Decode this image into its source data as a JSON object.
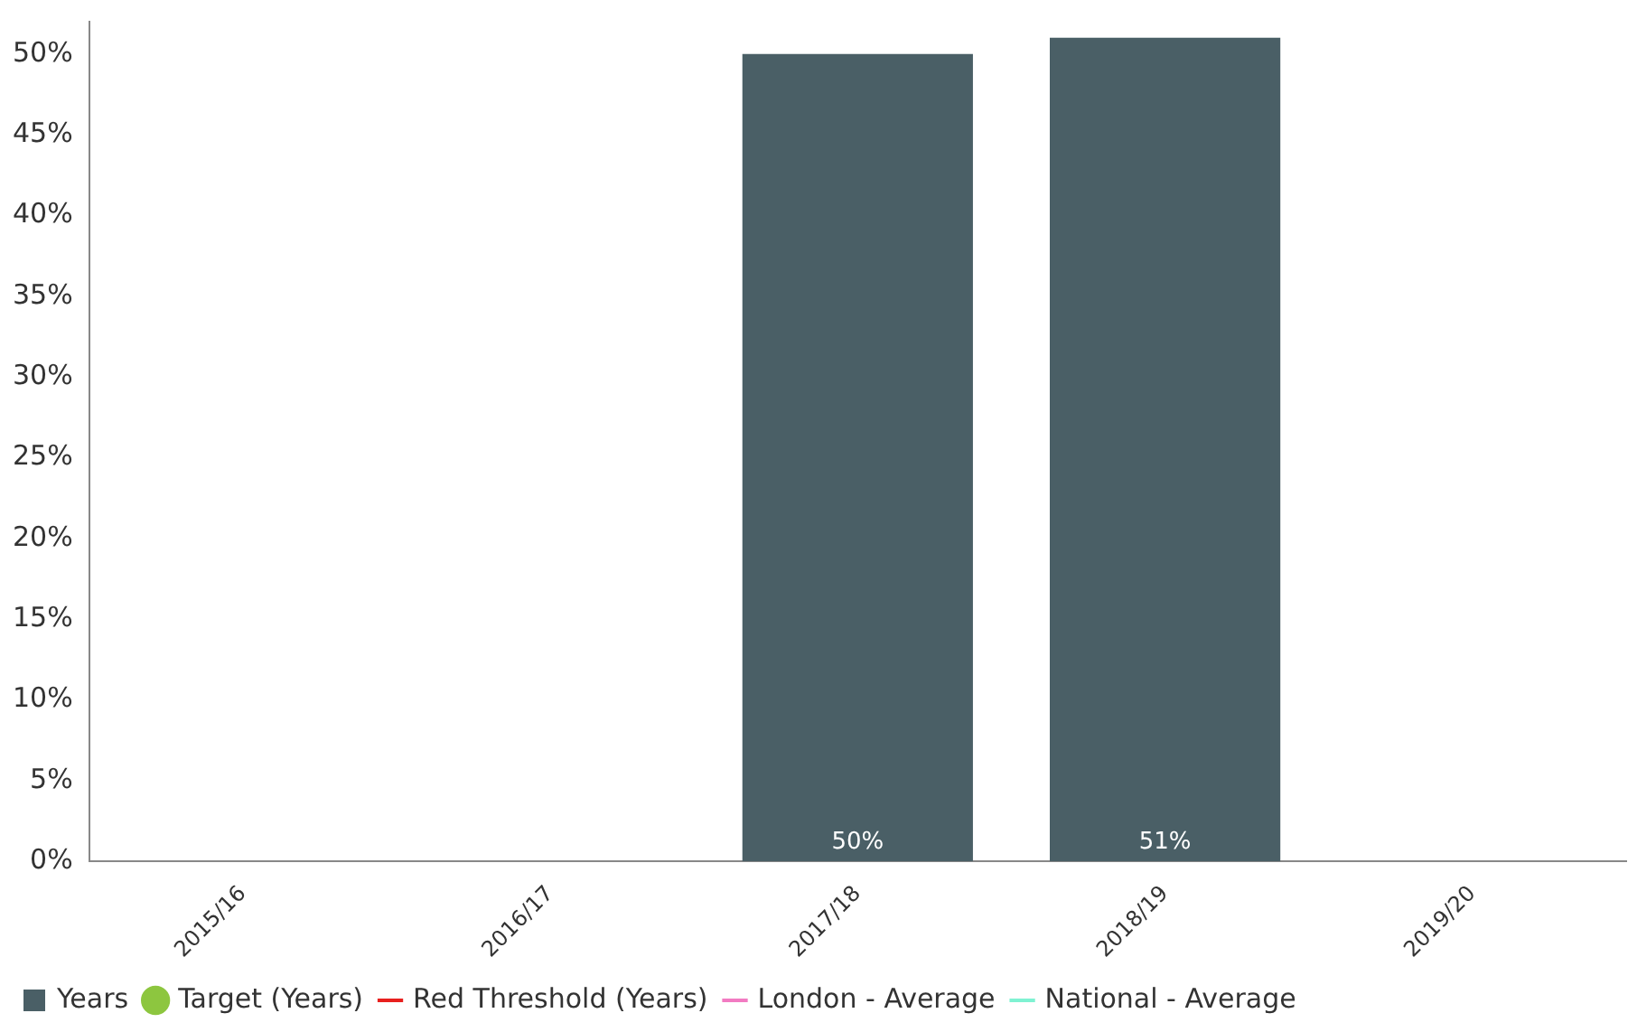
{
  "chart_data": {
    "type": "bar",
    "categories": [
      "2015/16",
      "2016/17",
      "2017/18",
      "2018/19",
      "2019/20"
    ],
    "series": [
      {
        "name": "Years",
        "color": "#4a5f66",
        "values": [
          null,
          null,
          50,
          51,
          null
        ],
        "value_labels": [
          null,
          null,
          "50%",
          "51%",
          null
        ]
      },
      {
        "name": "Target (Years)",
        "type": "line",
        "color": "#8dc63f",
        "marker": "circle",
        "values": [
          null,
          null,
          null,
          null,
          null
        ]
      },
      {
        "name": "Red Threshold (Years)",
        "type": "line",
        "color": "#e8201e",
        "marker": "none",
        "values": [
          null,
          null,
          null,
          null,
          null
        ]
      },
      {
        "name": "London - Average",
        "type": "line",
        "color": "#f27bc2",
        "marker": "none",
        "values": [
          null,
          null,
          null,
          null,
          null
        ]
      },
      {
        "name": "National - Average",
        "type": "line",
        "color": "#7ff2d2",
        "marker": "none",
        "values": [
          null,
          null,
          null,
          null,
          null
        ]
      }
    ],
    "ylim": [
      0,
      52
    ],
    "yticks": [
      {
        "value": 0,
        "label": "0%"
      },
      {
        "value": 5,
        "label": "5%"
      },
      {
        "value": 10,
        "label": "10%"
      },
      {
        "value": 15,
        "label": "15%"
      },
      {
        "value": 20,
        "label": "20%"
      },
      {
        "value": 25,
        "label": "25%"
      },
      {
        "value": 30,
        "label": "30%"
      },
      {
        "value": 35,
        "label": "35%"
      },
      {
        "value": 40,
        "label": "40%"
      },
      {
        "value": 45,
        "label": "45%"
      },
      {
        "value": 50,
        "label": "50%"
      }
    ],
    "grid": false,
    "legend": "bottom left"
  }
}
